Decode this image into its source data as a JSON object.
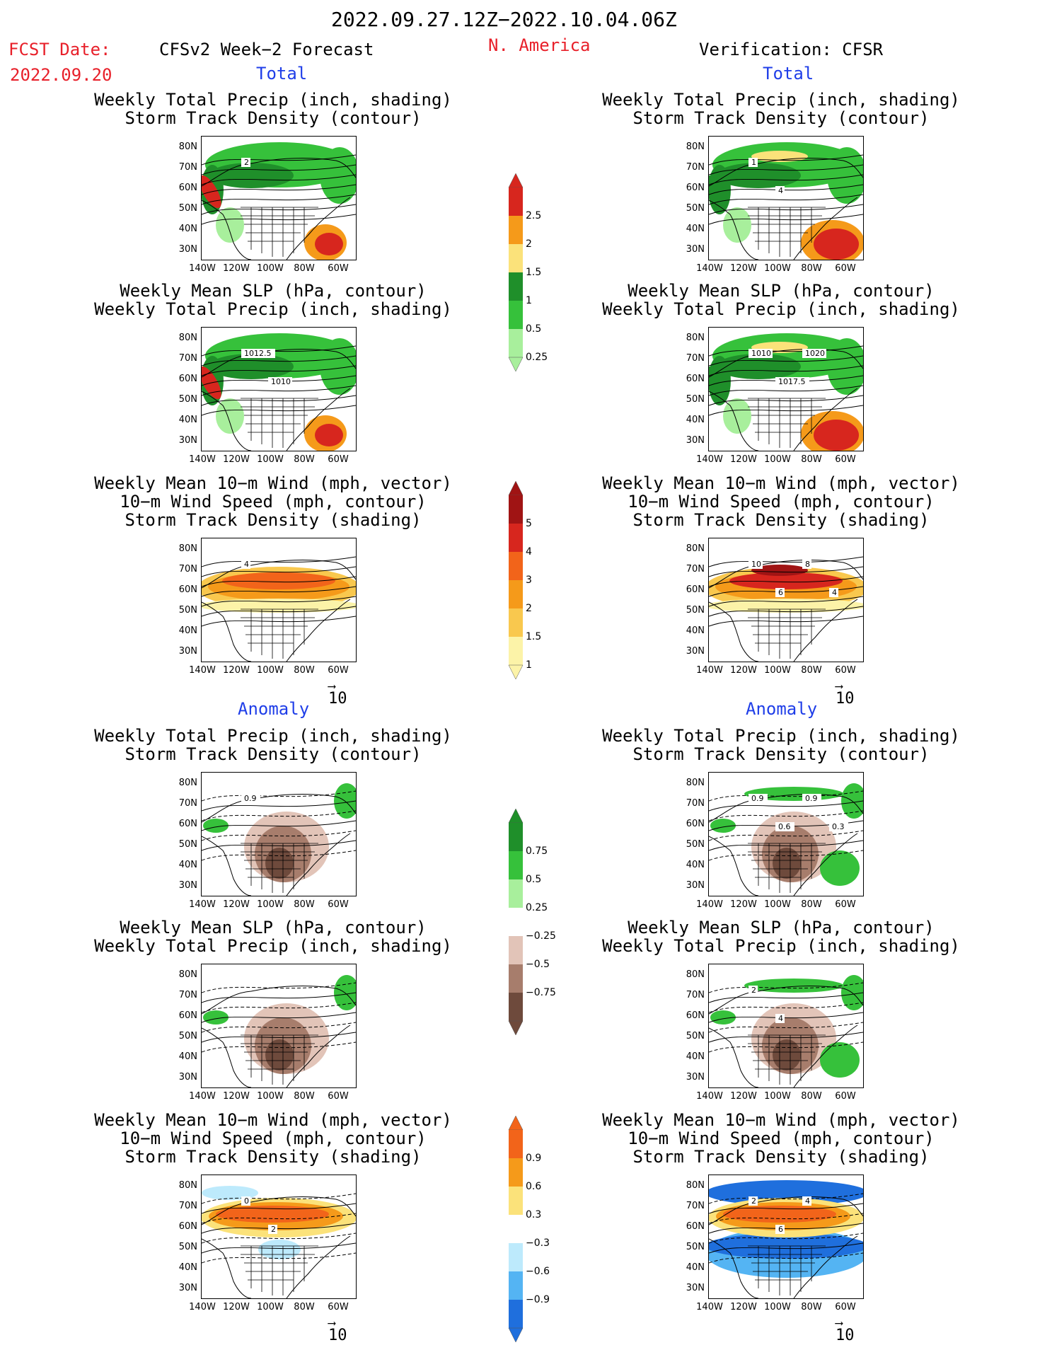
{
  "header": {
    "date_range": "2022.09.27.12Z−2022.10.04.06Z",
    "fcst_label": "FCST Date:",
    "fcst_date": "2022.09.20",
    "model_title": "CFSv2 Week−2 Forecast",
    "region": "N. America",
    "verif_title": "Verification: CFSR"
  },
  "section_labels": {
    "total": "Total",
    "anomaly": "Anomaly"
  },
  "panel_titles": {
    "precip_storm": "Weekly Total Precip (inch, shading)\nStorm Track Density (contour)",
    "slp_precip": "Weekly Mean SLP (hPa, contour)\nWeekly Total Precip (inch, shading)",
    "wind_storm": "Weekly Mean 10−m Wind (mph, vector)\n10−m Wind Speed (mph, contour)\nStorm Track Density (shading)"
  },
  "map_axes": {
    "lat_labels": [
      "80N",
      "70N",
      "60N",
      "50N",
      "40N",
      "30N"
    ],
    "lon_labels": [
      "140W",
      "120W",
      "100W",
      "80W",
      "60W"
    ]
  },
  "vector_ref": "10",
  "contour_labels": {
    "t1l": [
      "2"
    ],
    "t1r": [
      "1",
      "4"
    ],
    "t2l": [
      "1012.5",
      "1010"
    ],
    "t2r": [
      "1010",
      "1017.5",
      "1020"
    ],
    "t3l": [
      "4"
    ],
    "t3r": [
      "10",
      "6",
      "8",
      "4"
    ],
    "a1l": [
      "0.9"
    ],
    "a1r": [
      "0.9",
      "0.6",
      "0.9",
      "0.3"
    ],
    "a2l": [],
    "a2r": [
      "2",
      "4"
    ],
    "a3l": [
      "0",
      "2"
    ],
    "a3r": [
      "2",
      "6",
      "4"
    ]
  },
  "colorbars": [
    {
      "name": "total-precip",
      "labels": [
        "2.5",
        "2",
        "1.5",
        "1",
        "0.5",
        "0.25"
      ],
      "colors": [
        "#d7261e",
        "#f59a1a",
        "#fbe27a",
        "#1f8f2a",
        "#36c13b",
        "#a8ef9c"
      ]
    },
    {
      "name": "total-storm-density",
      "labels": [
        "5",
        "4",
        "3",
        "2",
        "1.5",
        "1"
      ],
      "colors": [
        "#a01414",
        "#d7261e",
        "#f2641a",
        "#f59a1a",
        "#f9c84e",
        "#fcf3a8"
      ]
    },
    {
      "name": "anomaly-precip",
      "labels": [
        "0.75",
        "0.5",
        "0.25",
        "−0.25",
        "−0.5",
        "−0.75"
      ],
      "colors": [
        "#1f8f2a",
        "#36c13b",
        "#a8ef9c",
        "#ffffff",
        "#e2c4b8",
        "#a77d6c",
        "#6e4a3c"
      ]
    },
    {
      "name": "anomaly-storm-density",
      "labels": [
        "0.9",
        "0.6",
        "0.3",
        "−0.3",
        "−0.6",
        "−0.9"
      ],
      "colors": [
        "#f2641a",
        "#f59a1a",
        "#fbe27a",
        "#ffffff",
        "#bdeafc",
        "#54b4f3",
        "#1f6fdd"
      ]
    }
  ],
  "chart_data": [
    {
      "type": "heatmap",
      "panel": "forecast-total-precip-storm-track",
      "title": "Weekly Total Precip (inch, shading) / Storm Track Density (contour)",
      "xlabel": "",
      "ylabel": "",
      "levels": [
        0.25,
        0.5,
        1,
        1.5,
        2,
        2.5
      ]
    },
    {
      "type": "heatmap",
      "panel": "verification-total-precip-storm-track",
      "title": "Weekly Total Precip (inch, shading) / Storm Track Density (contour)",
      "xlabel": "",
      "ylabel": "",
      "levels": [
        0.25,
        0.5,
        1,
        1.5,
        2,
        2.5
      ]
    },
    {
      "type": "heatmap",
      "panel": "forecast-total-slp-precip",
      "title": "Weekly Mean SLP (hPa, contour) / Weekly Total Precip (inch, shading)",
      "xlabel": "",
      "ylabel": "",
      "contour_values": [
        1012.5,
        1010
      ]
    },
    {
      "type": "heatmap",
      "panel": "verification-total-slp-precip",
      "title": "Weekly Mean SLP (hPa, contour) / Weekly Total Precip (inch, shading)",
      "xlabel": "",
      "ylabel": "",
      "contour_values": [
        1010,
        1017.5,
        1020
      ]
    },
    {
      "type": "heatmap",
      "panel": "forecast-total-wind-storm-track",
      "title": "Weekly Mean 10-m Wind / 10-m Wind Speed / Storm Track Density",
      "xlabel": "",
      "ylabel": "",
      "levels": [
        1,
        1.5,
        2,
        3,
        4,
        5
      ]
    },
    {
      "type": "heatmap",
      "panel": "verification-total-wind-storm-track",
      "title": "Weekly Mean 10-m Wind / 10-m Wind Speed / Storm Track Density",
      "xlabel": "",
      "ylabel": "",
      "levels": [
        1,
        1.5,
        2,
        3,
        4,
        5
      ]
    },
    {
      "type": "heatmap",
      "panel": "forecast-anomaly-precip-storm-track",
      "title": "Weekly Total Precip (inch, shading) / Storm Track Density (contour)",
      "xlabel": "",
      "ylabel": "",
      "levels": [
        -0.75,
        -0.5,
        -0.25,
        0.25,
        0.5,
        0.75
      ]
    },
    {
      "type": "heatmap",
      "panel": "verification-anomaly-precip-storm-track",
      "title": "Weekly Total Precip (inch, shading) / Storm Track Density (contour)",
      "xlabel": "",
      "ylabel": "",
      "levels": [
        -0.75,
        -0.5,
        -0.25,
        0.25,
        0.5,
        0.75
      ]
    },
    {
      "type": "heatmap",
      "panel": "forecast-anomaly-slp-precip",
      "title": "Weekly Mean SLP (hPa, contour) / Weekly Total Precip (inch, shading)",
      "xlabel": "",
      "ylabel": ""
    },
    {
      "type": "heatmap",
      "panel": "verification-anomaly-slp-precip",
      "title": "Weekly Mean SLP (hPa, contour) / Weekly Total Precip (inch, shading)",
      "xlabel": "",
      "ylabel": ""
    },
    {
      "type": "heatmap",
      "panel": "forecast-anomaly-wind-storm-track",
      "title": "Weekly Mean 10-m Wind / 10-m Wind Speed / Storm Track Density",
      "xlabel": "",
      "ylabel": "",
      "levels": [
        -0.9,
        -0.6,
        -0.3,
        0.3,
        0.6,
        0.9
      ]
    },
    {
      "type": "heatmap",
      "panel": "verification-anomaly-wind-storm-track",
      "title": "Weekly Mean 10-m Wind / 10-m Wind Speed / Storm Track Density",
      "xlabel": "",
      "ylabel": "",
      "levels": [
        -0.9,
        -0.6,
        -0.3,
        0.3,
        0.6,
        0.9
      ]
    }
  ]
}
